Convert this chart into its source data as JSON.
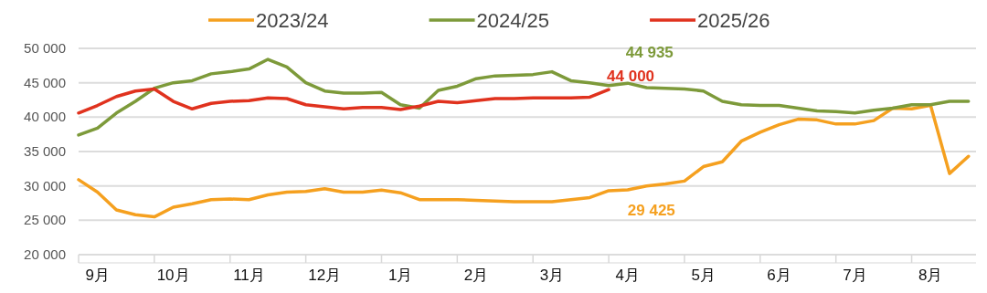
{
  "chart_data": {
    "type": "line",
    "legend": "top",
    "grid": "y",
    "line_style": "solid",
    "ylim": [
      20000,
      50000
    ],
    "yticks": [
      {
        "value": 20000,
        "label": "20 000"
      },
      {
        "value": 25000,
        "label": "25 000"
      },
      {
        "value": 30000,
        "label": "30 000"
      },
      {
        "value": 35000,
        "label": "35 000"
      },
      {
        "value": 40000,
        "label": "40 000"
      },
      {
        "value": 45000,
        "label": "45 000"
      },
      {
        "value": 50000,
        "label": "50 000"
      }
    ],
    "categories": [
      null,
      "9月",
      null,
      null,
      null,
      "10月",
      null,
      null,
      null,
      "11月",
      null,
      null,
      null,
      "12月",
      null,
      null,
      null,
      "1月",
      null,
      null,
      null,
      "2月",
      null,
      null,
      null,
      "3月",
      null,
      null,
      null,
      "4月",
      null,
      null,
      null,
      "5月",
      null,
      null,
      null,
      "6月",
      null,
      null,
      null,
      "7月",
      null,
      null,
      null,
      "8月",
      null,
      null
    ],
    "series": [
      {
        "name": "2023/24",
        "color": "#f5a01f",
        "values": [
          30900,
          29100,
          26500,
          25800,
          25500,
          26900,
          27400,
          28000,
          28100,
          28000,
          28700,
          29100,
          29200,
          29600,
          29100,
          29100,
          29400,
          29000,
          28000,
          28000,
          28000,
          27900,
          27800,
          27700,
          27700,
          27700,
          28000,
          28300,
          29300,
          29425,
          30000,
          30300,
          30700,
          32800,
          33500,
          36500,
          37800,
          38900,
          39700,
          39600,
          39000,
          39000,
          39500,
          41300,
          41200,
          41700,
          31800,
          34300
        ]
      },
      {
        "name": "2024/25",
        "color": "#7d9a3a",
        "values": [
          37400,
          38400,
          40600,
          42300,
          44200,
          45000,
          45300,
          46300,
          46600,
          47000,
          48400,
          47300,
          45000,
          43800,
          43500,
          43500,
          43600,
          41800,
          41300,
          43900,
          44500,
          45600,
          46000,
          46100,
          46200,
          46600,
          45300,
          45000,
          44600,
          44935,
          44300,
          44200,
          44100,
          43800,
          42300,
          41800,
          41700,
          41700,
          41300,
          40900,
          40800,
          40600,
          41000,
          41300,
          41800,
          41800,
          42300,
          42300
        ]
      },
      {
        "name": "2025/26",
        "color": "#e0321e",
        "values": [
          40600,
          41700,
          43000,
          43800,
          44100,
          42300,
          41200,
          42000,
          42300,
          42400,
          42800,
          42700,
          41800,
          41500,
          41200,
          41400,
          41400,
          41100,
          41600,
          42300,
          42100,
          42400,
          42700,
          42700,
          42800,
          42800,
          42800,
          42900,
          44000,
          null,
          null,
          null,
          null,
          null,
          null,
          null,
          null,
          null,
          null,
          null,
          null,
          null,
          null,
          null,
          null,
          null,
          null,
          null
        ]
      }
    ],
    "annotations": [
      {
        "text": "44 935",
        "y": 44935
      },
      {
        "text": "44 000",
        "y": 44000
      },
      {
        "text": "29 425",
        "y": 29425
      }
    ]
  }
}
